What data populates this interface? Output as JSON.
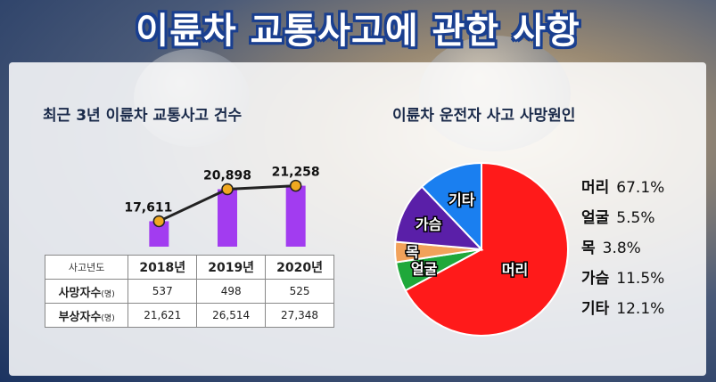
{
  "title": "이륜차 교통사고에 관한 사항",
  "left_section": {
    "subtitle": "최근 3년 이륜차 교통사고 건수"
  },
  "right_section": {
    "subtitle": "이륜차 운전자 사고 사망원인"
  },
  "table": {
    "corner": "사고년도",
    "years": [
      "2018년",
      "2019년",
      "2020년"
    ],
    "rows": [
      {
        "label": "사망자수",
        "unit": "(명)",
        "values": [
          "537",
          "498",
          "525"
        ]
      },
      {
        "label": "부상자수",
        "unit": "(명)",
        "values": [
          "21,621",
          "26,514",
          "27,348"
        ]
      }
    ]
  },
  "colors": {
    "bar": "#a23cf0",
    "line": "#222222",
    "marker": "#f0a820",
    "title_outline": "#1a3f8f"
  },
  "chart_data": [
    {
      "type": "bar",
      "title": "최근 3년 이륜차 교통사고 건수",
      "categories": [
        "2018년",
        "2019년",
        "2020년"
      ],
      "values": [
        17611,
        20898,
        21258
      ],
      "data_labels": [
        "17,611",
        "20,898",
        "21,258"
      ],
      "overlay": "line",
      "ylim": [
        15000,
        22500
      ]
    },
    {
      "type": "pie",
      "title": "이륜차 운전자 사고 사망원인",
      "slices": [
        {
          "label": "머리",
          "value": 67.1,
          "pct": "67.1%",
          "color": "#ff1a1a"
        },
        {
          "label": "얼굴",
          "value": 5.5,
          "pct": "5.5%",
          "color": "#1fa83a"
        },
        {
          "label": "목",
          "value": 3.8,
          "pct": "3.8%",
          "color": "#f2a25a"
        },
        {
          "label": "가슴",
          "value": 11.5,
          "pct": "11.5%",
          "color": "#5a1fa8"
        },
        {
          "label": "기타",
          "value": 12.1,
          "pct": "12.1%",
          "color": "#1a7ff0"
        }
      ]
    }
  ]
}
